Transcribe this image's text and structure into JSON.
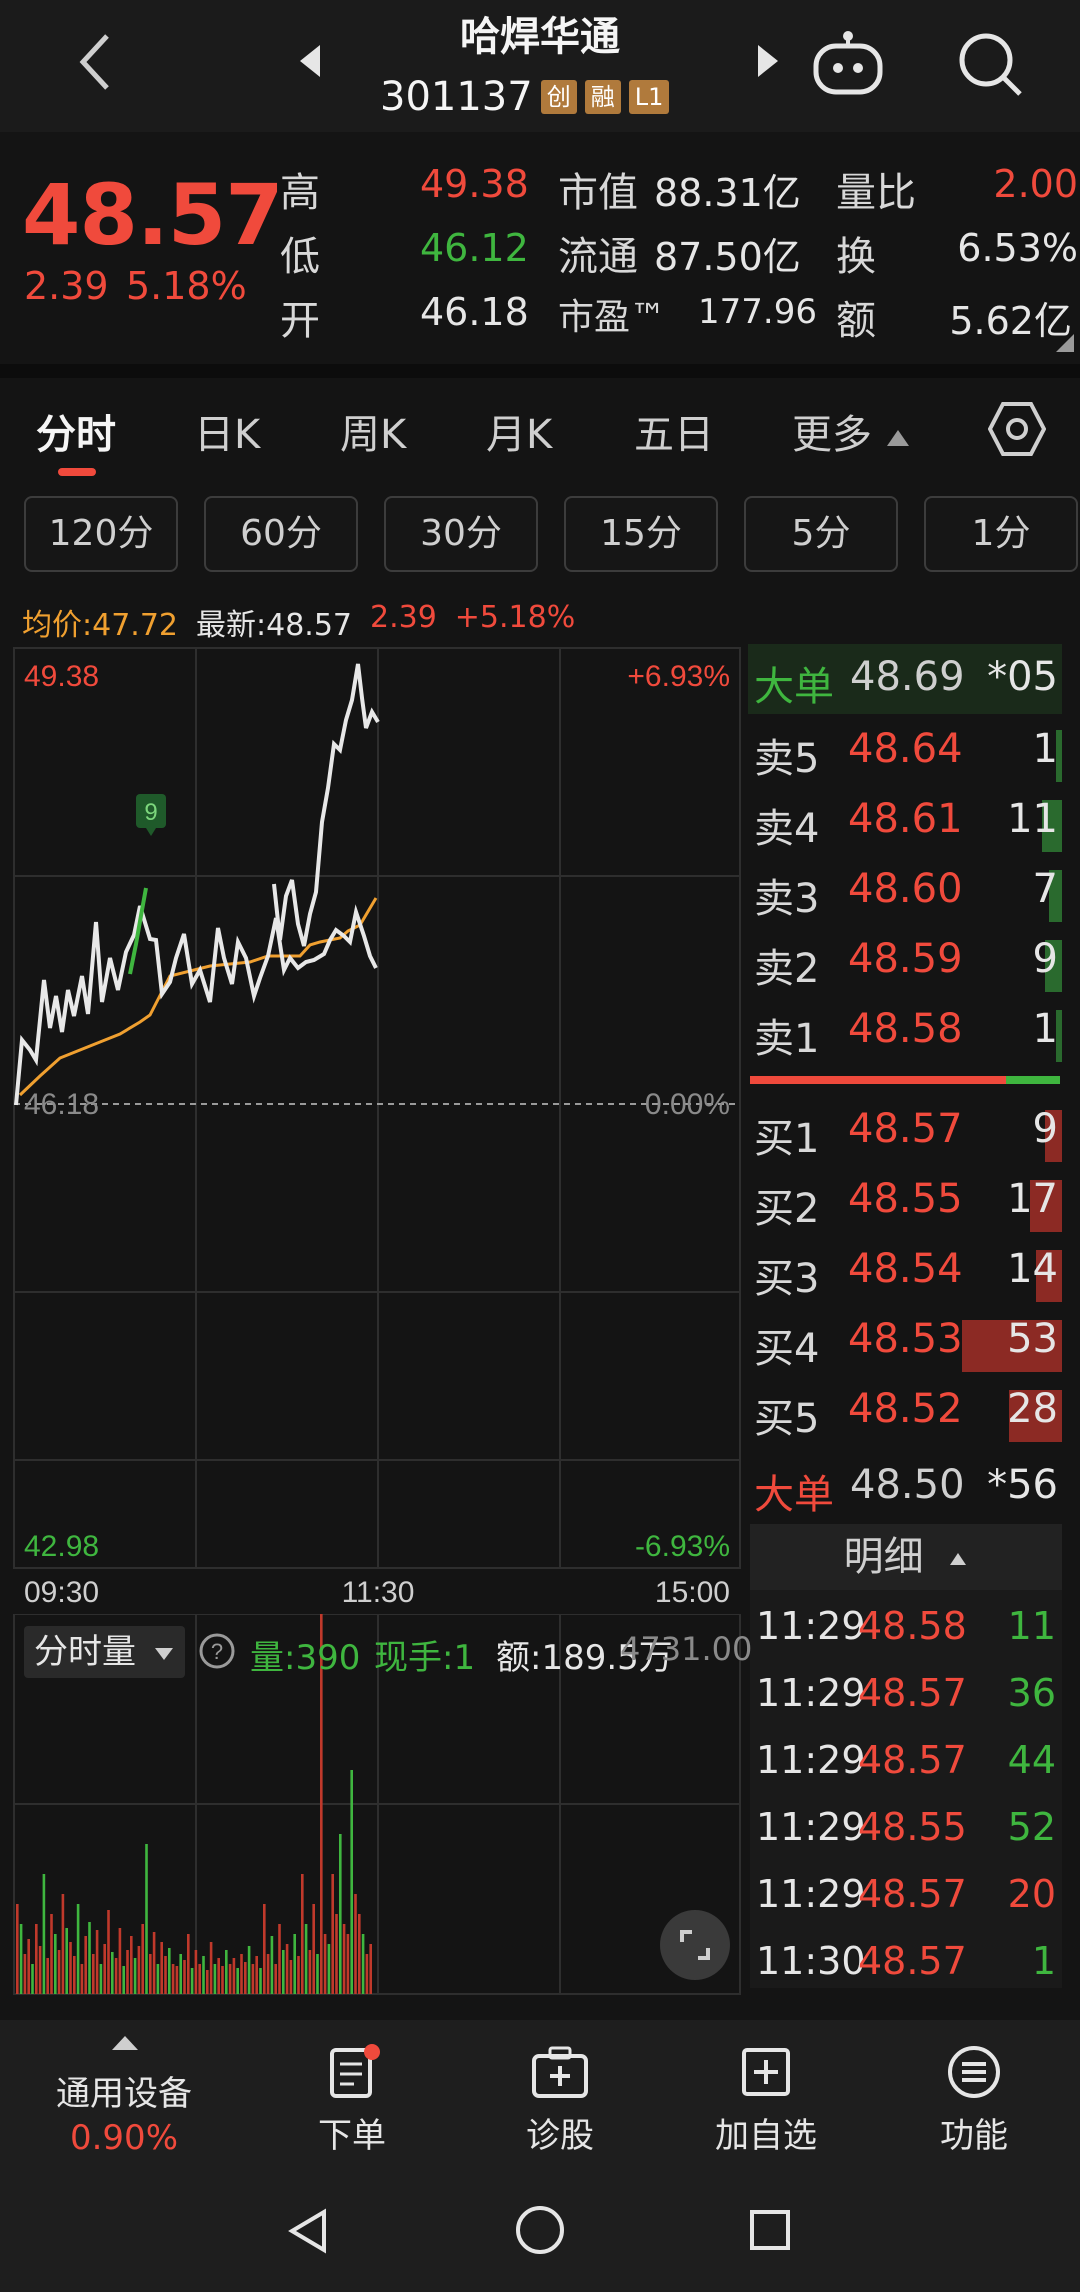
{
  "header": {
    "title": "哈焊华通",
    "code": "301137",
    "tags": [
      "创",
      "融",
      "L1"
    ]
  },
  "quote": {
    "price": "48.57",
    "change": "2.39",
    "change_pct": "5.18%",
    "high_label": "高",
    "high": "49.38",
    "low_label": "低",
    "low": "46.12",
    "open_label": "开",
    "open": "46.18",
    "mktcap_label": "市值",
    "mktcap": "88.31亿",
    "float_label": "流通",
    "float": "87.50亿",
    "pe_label": "市盈™",
    "pe": "177.96",
    "volratio_label": "量比",
    "volratio": "2.00",
    "turnover_label": "换",
    "turnover": "6.53%",
    "amount_label": "额",
    "amount": "5.62亿"
  },
  "tabs": [
    "分时",
    "日K",
    "周K",
    "月K",
    "五日",
    "更多"
  ],
  "intervals": [
    "120分",
    "60分",
    "30分",
    "15分",
    "5分",
    "1分"
  ],
  "avg_row": {
    "avg": "均价:47.72",
    "latest": "最新:48.57",
    "chg": "2.39",
    "pct": "+5.18%"
  },
  "chart": {
    "y_top": "49.38",
    "y_mid": "46.18",
    "y_bottom": "42.98",
    "pct_top": "+6.93%",
    "pct_mid": "0.00%",
    "pct_bottom": "-6.93%",
    "x_labels": [
      "09:30",
      "11:30",
      "15:00"
    ],
    "marker": "9"
  },
  "orderbook": {
    "big_top": {
      "label": "大单",
      "price": "48.69",
      "vol": "*05"
    },
    "asks": [
      {
        "label": "卖5",
        "price": "48.64",
        "vol": "1",
        "bar": 0.02
      },
      {
        "label": "卖4",
        "price": "48.61",
        "vol": "11",
        "bar": 0.2
      },
      {
        "label": "卖3",
        "price": "48.60",
        "vol": "7",
        "bar": 0.13
      },
      {
        "label": "卖2",
        "price": "48.59",
        "vol": "9",
        "bar": 0.17
      },
      {
        "label": "卖1",
        "price": "48.58",
        "vol": "1",
        "bar": 0.02
      }
    ],
    "bids": [
      {
        "label": "买1",
        "price": "48.57",
        "vol": "9",
        "bar": 0.17
      },
      {
        "label": "买2",
        "price": "48.55",
        "vol": "17",
        "bar": 0.32
      },
      {
        "label": "买3",
        "price": "48.54",
        "vol": "14",
        "bar": 0.26
      },
      {
        "label": "买4",
        "price": "48.53",
        "vol": "53",
        "bar": 1.0
      },
      {
        "label": "买5",
        "price": "48.52",
        "vol": "28",
        "bar": 0.53
      }
    ],
    "big_bottom": {
      "label": "大单",
      "price": "48.50",
      "vol": "*56"
    }
  },
  "detail": {
    "title": "明细",
    "rows": [
      {
        "time": "11:29",
        "price": "48.58",
        "vol": "11",
        "dir": "buy"
      },
      {
        "time": "11:29",
        "price": "48.57",
        "vol": "36",
        "dir": "buy"
      },
      {
        "time": "11:29",
        "price": "48.57",
        "vol": "44",
        "dir": "buy"
      },
      {
        "time": "11:29",
        "price": "48.55",
        "vol": "52",
        "dir": "buy"
      },
      {
        "time": "11:29",
        "price": "48.57",
        "vol": "20",
        "dir": "sell"
      },
      {
        "time": "11:30",
        "price": "48.57",
        "vol": "1",
        "dir": "buy"
      }
    ]
  },
  "volume": {
    "selector": "分时量",
    "vol": "量:390",
    "hand": "现手:1",
    "amount": "额:189.5万",
    "right_value": "4731.00"
  },
  "bottomnav": [
    {
      "label": "通用设备",
      "sub": "0.90%",
      "icon": "caret-up-icon"
    },
    {
      "label": "下单",
      "icon": "order-icon"
    },
    {
      "label": "诊股",
      "icon": "diagnose-icon"
    },
    {
      "label": "加自选",
      "icon": "add-watchlist-icon"
    },
    {
      "label": "功能",
      "icon": "menu-icon"
    }
  ]
}
